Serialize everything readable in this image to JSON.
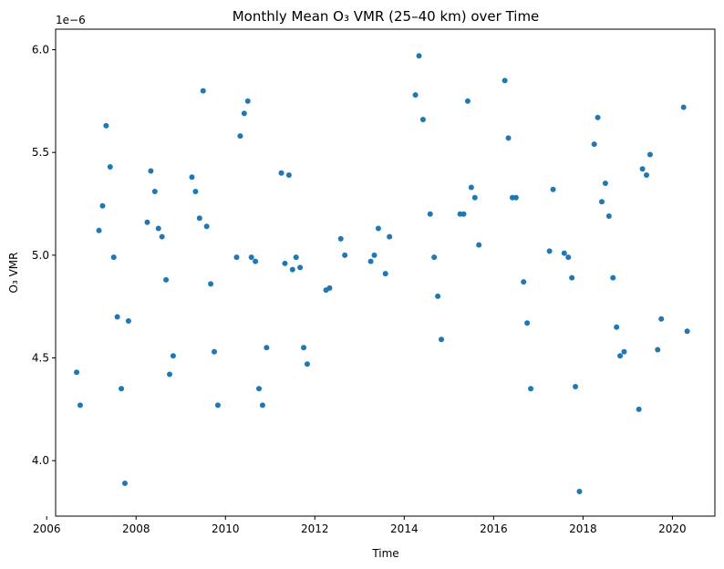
{
  "chart_data": {
    "type": "scatter",
    "title": "Monthly Mean O₃ VMR (25–40 km) over Time",
    "xlabel": "Time",
    "ylabel": "O₃ VMR",
    "y_offset_label": "1e−6",
    "xlim": [
      2006.2,
      2020.95
    ],
    "ylim": [
      3.73,
      6.1
    ],
    "x_ticks": [
      2006,
      2008,
      2010,
      2012,
      2014,
      2016,
      2018,
      2020
    ],
    "x_tick_labels": [
      "2006",
      "2008",
      "2010",
      "2012",
      "2014",
      "2016",
      "2018",
      "2020"
    ],
    "y_ticks": [
      4.0,
      4.5,
      5.0,
      5.5,
      6.0
    ],
    "y_tick_labels": [
      "4.0",
      "4.5",
      "5.0",
      "5.5",
      "6.0"
    ],
    "grid": false,
    "marker_color": "#1f77b4",
    "series": [
      {
        "points": [
          [
            2006.67,
            4.43
          ],
          [
            2006.75,
            4.27
          ],
          [
            2007.17,
            5.12
          ],
          [
            2007.25,
            5.24
          ],
          [
            2007.33,
            5.63
          ],
          [
            2007.42,
            5.43
          ],
          [
            2007.5,
            4.99
          ],
          [
            2007.58,
            4.7
          ],
          [
            2007.67,
            4.35
          ],
          [
            2007.75,
            3.89
          ],
          [
            2007.83,
            4.68
          ],
          [
            2008.25,
            5.16
          ],
          [
            2008.33,
            5.41
          ],
          [
            2008.42,
            5.31
          ],
          [
            2008.5,
            5.13
          ],
          [
            2008.58,
            5.09
          ],
          [
            2008.67,
            4.88
          ],
          [
            2008.75,
            4.42
          ],
          [
            2008.83,
            4.51
          ],
          [
            2009.25,
            5.38
          ],
          [
            2009.33,
            5.31
          ],
          [
            2009.42,
            5.18
          ],
          [
            2009.5,
            5.8
          ],
          [
            2009.58,
            5.14
          ],
          [
            2009.67,
            4.86
          ],
          [
            2009.75,
            4.53
          ],
          [
            2009.83,
            4.27
          ],
          [
            2010.25,
            4.99
          ],
          [
            2010.33,
            5.58
          ],
          [
            2010.42,
            5.69
          ],
          [
            2010.5,
            5.75
          ],
          [
            2010.58,
            4.99
          ],
          [
            2010.67,
            4.97
          ],
          [
            2010.75,
            4.35
          ],
          [
            2010.83,
            4.27
          ],
          [
            2010.92,
            4.55
          ],
          [
            2011.25,
            5.4
          ],
          [
            2011.33,
            4.96
          ],
          [
            2011.42,
            5.39
          ],
          [
            2011.5,
            4.93
          ],
          [
            2011.58,
            4.99
          ],
          [
            2011.67,
            4.94
          ],
          [
            2011.75,
            4.55
          ],
          [
            2011.83,
            4.47
          ],
          [
            2012.25,
            4.83
          ],
          [
            2012.33,
            4.84
          ],
          [
            2012.58,
            5.08
          ],
          [
            2012.67,
            5.0
          ],
          [
            2013.25,
            4.97
          ],
          [
            2013.33,
            5.0
          ],
          [
            2013.42,
            5.13
          ],
          [
            2013.58,
            4.91
          ],
          [
            2013.67,
            5.09
          ],
          [
            2014.25,
            5.78
          ],
          [
            2014.33,
            5.97
          ],
          [
            2014.42,
            5.66
          ],
          [
            2014.58,
            5.2
          ],
          [
            2014.67,
            4.99
          ],
          [
            2014.75,
            4.8
          ],
          [
            2014.83,
            4.59
          ],
          [
            2015.25,
            5.2
          ],
          [
            2015.33,
            5.2
          ],
          [
            2015.42,
            5.75
          ],
          [
            2015.5,
            5.33
          ],
          [
            2015.58,
            5.28
          ],
          [
            2015.67,
            5.05
          ],
          [
            2016.25,
            5.85
          ],
          [
            2016.33,
            5.57
          ],
          [
            2016.42,
            5.28
          ],
          [
            2016.5,
            5.28
          ],
          [
            2016.67,
            4.87
          ],
          [
            2016.75,
            4.67
          ],
          [
            2016.83,
            4.35
          ],
          [
            2017.25,
            5.02
          ],
          [
            2017.33,
            5.32
          ],
          [
            2017.58,
            5.01
          ],
          [
            2017.67,
            4.99
          ],
          [
            2017.75,
            4.89
          ],
          [
            2017.83,
            4.36
          ],
          [
            2017.92,
            3.85
          ],
          [
            2018.25,
            5.54
          ],
          [
            2018.33,
            5.67
          ],
          [
            2018.42,
            5.26
          ],
          [
            2018.5,
            5.35
          ],
          [
            2018.58,
            5.19
          ],
          [
            2018.67,
            4.89
          ],
          [
            2018.75,
            4.65
          ],
          [
            2018.83,
            4.51
          ],
          [
            2018.92,
            4.53
          ],
          [
            2019.25,
            4.25
          ],
          [
            2019.33,
            5.42
          ],
          [
            2019.42,
            5.39
          ],
          [
            2019.5,
            5.49
          ],
          [
            2019.67,
            4.54
          ],
          [
            2019.75,
            4.69
          ],
          [
            2020.25,
            5.72
          ],
          [
            2020.33,
            4.63
          ]
        ]
      }
    ]
  }
}
